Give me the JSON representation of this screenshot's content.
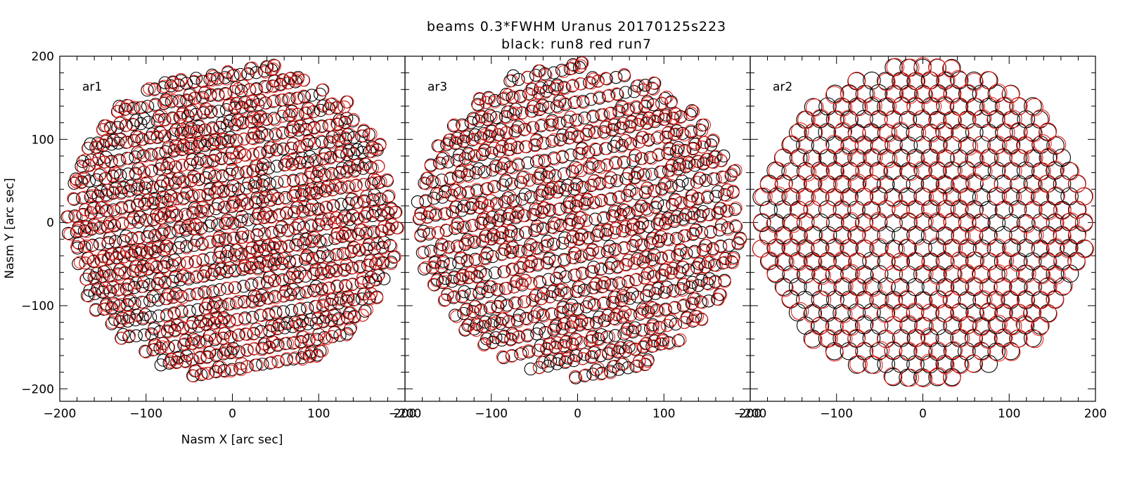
{
  "chart_data": {
    "type": "scatter",
    "title": "beams 0.3*FWHM Uranus 20170125s223",
    "subtitle": "black: run8 red run7",
    "xlabel": "Nasm X [arc sec]",
    "ylabel": "Nasm Y [arc sec]",
    "xlim": [
      -200,
      200
    ],
    "ylim": [
      -215,
      200
    ],
    "x_ticks": [
      -200,
      -100,
      0,
      100,
      200
    ],
    "y_ticks": [
      -200,
      -100,
      0,
      100,
      200
    ],
    "x_tick_labels": [
      "−200",
      "−100",
      "0",
      "100",
      "200"
    ],
    "y_tick_labels": [
      "−200",
      "−100",
      "0",
      "100",
      "200"
    ],
    "grid": false,
    "series_colors": {
      "run8": "#000000",
      "run7": "#e8201b"
    },
    "panels": [
      {
        "label": "ar1",
        "radius": 195,
        "spacing": 9,
        "row_gap": 20.5,
        "slope": 0.17,
        "theta_deg": 80,
        "max_gap": 14,
        "marker_size": 7,
        "seed": 11
      },
      {
        "label": "ar3",
        "radius": 192,
        "spacing": 10,
        "row_gap": 21.5,
        "slope": 0.2,
        "theta_deg": 82,
        "max_gap": 15,
        "marker_size": 7,
        "seed": 23
      },
      {
        "label": "ar2",
        "radius": 196,
        "spacing": 17,
        "row_gap": 15.5,
        "slope": 0.0,
        "theta_deg": 90,
        "max_gap": 9,
        "marker_size": 10,
        "seed": 37
      }
    ]
  }
}
